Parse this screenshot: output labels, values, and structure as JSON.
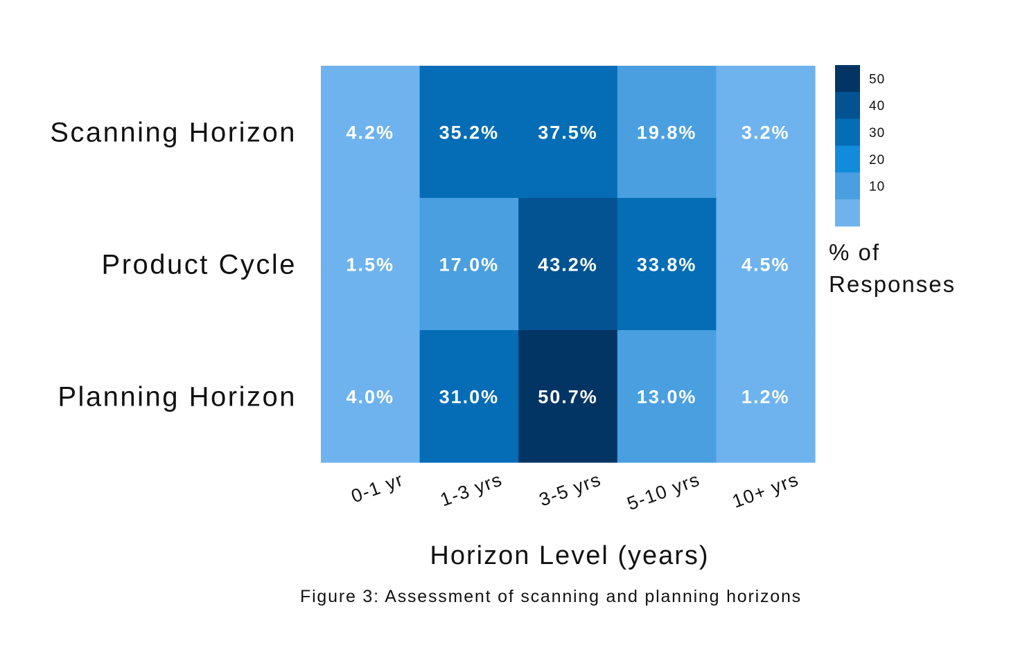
{
  "chart_data": {
    "type": "heatmap",
    "rows": [
      "Scanning Horizon",
      "Product Cycle",
      "Planning Horizon"
    ],
    "columns": [
      "0-1 yr",
      "1-3 yrs",
      "3-5 yrs",
      "5-10 yrs",
      "10+ yrs"
    ],
    "values": [
      [
        4.2,
        35.2,
        37.5,
        19.8,
        3.2
      ],
      [
        1.5,
        17.0,
        43.2,
        33.8,
        4.5
      ],
      [
        4.0,
        31.0,
        50.7,
        13.0,
        1.2
      ]
    ],
    "cell_labels": [
      [
        "4.2%",
        "35.2%",
        "37.5%",
        "19.8%",
        "3.2%"
      ],
      [
        "1.5%",
        "17.0%",
        "43.2%",
        "33.8%",
        "4.5%"
      ],
      [
        "4.0%",
        "31.0%",
        "50.7%",
        "13.0%",
        "1.2%"
      ]
    ],
    "xlabel": "Horizon Level (years)",
    "ylabel": "",
    "caption": "Figure 3: Assessment of scanning and planning horizons",
    "colorbar": {
      "title_lines": [
        "% of",
        "Responses"
      ],
      "ticks": [
        "50",
        "40",
        "30",
        "20",
        "10"
      ],
      "bins": [
        {
          "min": 50,
          "color": "#023563"
        },
        {
          "min": 40,
          "color": "#035393"
        },
        {
          "min": 30,
          "color": "#046db6"
        },
        {
          "min": 20,
          "color": "#118cdc"
        },
        {
          "min": 10,
          "color": "#4a9fe0"
        },
        {
          "min": 0,
          "color": "#6eb3ed"
        }
      ]
    },
    "legend_position": "right",
    "grid": false
  }
}
